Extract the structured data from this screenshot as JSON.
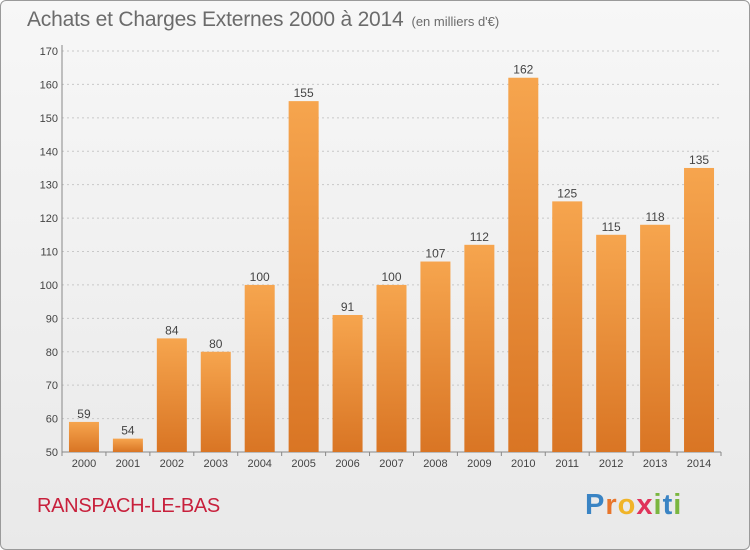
{
  "header": {
    "title": "Achats et Charges Externes 2000 à 2014",
    "unit": "(en milliers d'€)"
  },
  "footer": {
    "commune": "RANSPACH-LE-BAS",
    "logo_letters": [
      "P",
      "r",
      "o",
      "x",
      "i",
      "t",
      "i"
    ],
    "logo_colors": [
      "#3a84c4",
      "#e8762c",
      "#f0b428",
      "#e0335a",
      "#7ab640",
      "#3a84c4",
      "#7ab640"
    ]
  },
  "colors": {
    "bar_light": "#f6a54e",
    "bar_dark": "#d97524",
    "grid": "#c8c8c8",
    "axis_text": "#444444"
  },
  "chart_data": {
    "type": "bar",
    "title": "Achats et Charges Externes 2000 à 2014",
    "subtitle": "(en milliers d'€)",
    "categories": [
      "2000",
      "2001",
      "2002",
      "2003",
      "2004",
      "2005",
      "2006",
      "2007",
      "2008",
      "2009",
      "2010",
      "2011",
      "2012",
      "2013",
      "2014"
    ],
    "values": [
      59,
      54,
      84,
      80,
      100,
      155,
      91,
      100,
      107,
      112,
      162,
      125,
      115,
      118,
      135
    ],
    "ylim": [
      50,
      170
    ],
    "yticks": [
      50,
      60,
      70,
      80,
      90,
      100,
      110,
      120,
      130,
      140,
      150,
      160,
      170
    ],
    "grid": "horizontal dashed",
    "legend": "none"
  }
}
